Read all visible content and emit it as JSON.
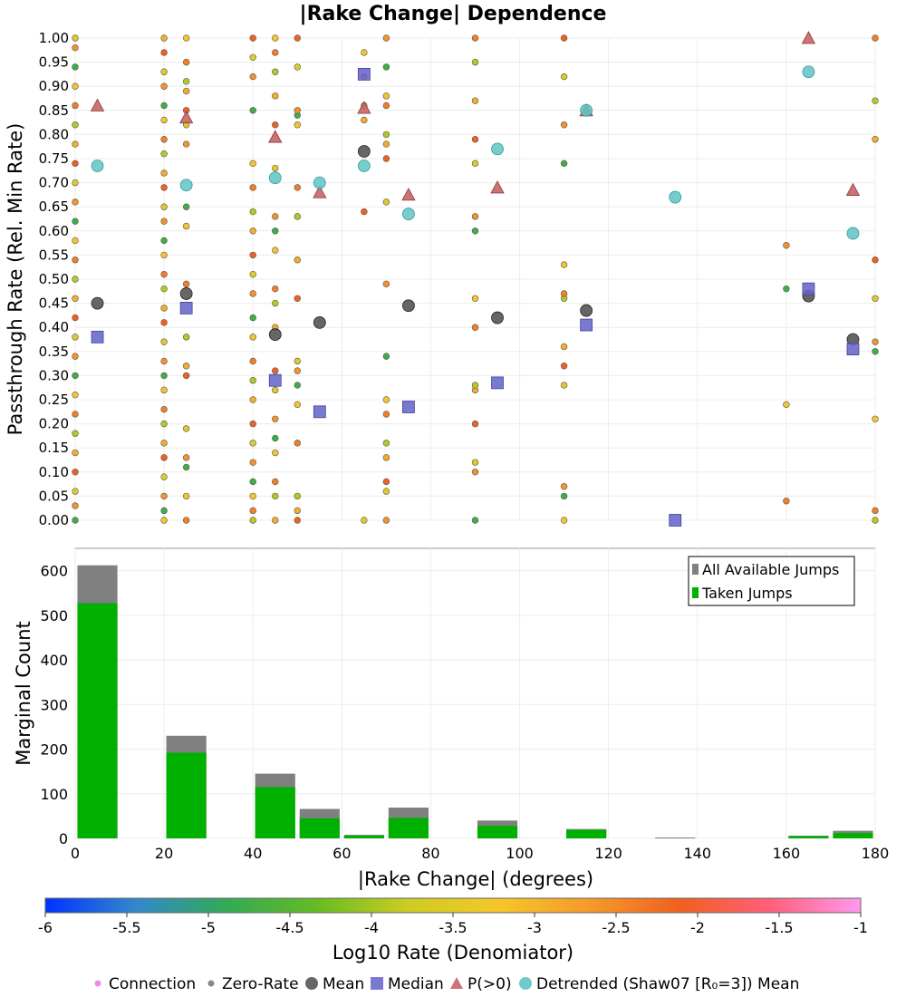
{
  "title": "|Rake Change| Dependence",
  "chart_data": [
    {
      "type": "scatter",
      "title": "|Rake Change| Dependence",
      "xlabel": "",
      "ylabel": "Passthrough Rate (Rel. Min Rate)",
      "xlim": [
        0,
        180
      ],
      "ylim": [
        0,
        1
      ],
      "xticks_shown": false,
      "yticks": [
        "0.00",
        "0.05",
        "0.10",
        "0.15",
        "0.20",
        "0.25",
        "0.30",
        "0.35",
        "0.40",
        "0.45",
        "0.50",
        "0.55",
        "0.60",
        "0.65",
        "0.70",
        "0.75",
        "0.80",
        "0.85",
        "0.90",
        "0.95",
        "1.00"
      ],
      "grid": true,
      "series": [
        {
          "name": "Mean",
          "marker": "circle",
          "color": "#555555",
          "points": [
            [
              5,
              0.45
            ],
            [
              25,
              0.47
            ],
            [
              45,
              0.385
            ],
            [
              55,
              0.41
            ],
            [
              65,
              0.765
            ],
            [
              75,
              0.445
            ],
            [
              95,
              0.42
            ],
            [
              115,
              0.435
            ],
            [
              165,
              0.465
            ],
            [
              175,
              0.375
            ]
          ]
        },
        {
          "name": "Median",
          "marker": "square",
          "color": "#6666cc",
          "points": [
            [
              5,
              0.38
            ],
            [
              25,
              0.44
            ],
            [
              45,
              0.29
            ],
            [
              55,
              0.225
            ],
            [
              65,
              0.925
            ],
            [
              75,
              0.235
            ],
            [
              95,
              0.285
            ],
            [
              115,
              0.405
            ],
            [
              135,
              0.0
            ],
            [
              165,
              0.48
            ],
            [
              175,
              0.355
            ]
          ]
        },
        {
          "name": "P(>0)",
          "marker": "triangle",
          "color": "#c86464",
          "points": [
            [
              5,
              0.86
            ],
            [
              25,
              0.835
            ],
            [
              45,
              0.795
            ],
            [
              55,
              0.68
            ],
            [
              65,
              0.855
            ],
            [
              75,
              0.675
            ],
            [
              95,
              0.69
            ],
            [
              115,
              0.85
            ],
            [
              165,
              1.0
            ],
            [
              175,
              0.685
            ]
          ]
        },
        {
          "name": "Detrended (Shaw07 [R₀=3]) Mean",
          "marker": "circle",
          "color": "#5fc4c4",
          "points": [
            [
              5,
              0.735
            ],
            [
              25,
              0.695
            ],
            [
              45,
              0.71
            ],
            [
              55,
              0.7
            ],
            [
              65,
              0.735
            ],
            [
              75,
              0.635
            ],
            [
              95,
              0.77
            ],
            [
              115,
              0.85
            ],
            [
              135,
              0.67
            ],
            [
              165,
              0.93
            ],
            [
              175,
              0.595
            ]
          ]
        }
      ],
      "rupture_points": {
        "note_colormap": "Log10 Rate (Denomiator)",
        "columns": [
          {
            "x": 0,
            "ys": [
              0.0,
              0.03,
              0.06,
              0.1,
              0.14,
              0.18,
              0.22,
              0.26,
              0.3,
              0.34,
              0.38,
              0.42,
              0.46,
              0.5,
              0.54,
              0.58,
              0.62,
              0.66,
              0.7,
              0.74,
              0.78,
              0.82,
              0.86,
              0.9,
              0.94,
              0.98,
              1.0
            ]
          },
          {
            "x": 20,
            "ys": [
              0.0,
              0.02,
              0.05,
              0.09,
              0.13,
              0.16,
              0.2,
              0.23,
              0.27,
              0.3,
              0.33,
              0.37,
              0.41,
              0.44,
              0.48,
              0.51,
              0.55,
              0.58,
              0.62,
              0.65,
              0.69,
              0.72,
              0.76,
              0.79,
              0.83,
              0.86,
              0.9,
              0.93,
              0.97,
              1.0
            ]
          },
          {
            "x": 25,
            "ys": [
              0.0,
              0.05,
              0.11,
              0.13,
              0.19,
              0.3,
              0.32,
              0.38,
              0.49,
              0.61,
              0.65,
              0.78,
              0.82,
              0.85,
              0.89,
              0.91,
              0.95,
              1.0
            ]
          },
          {
            "x": 40,
            "ys": [
              0.0,
              0.02,
              0.05,
              0.08,
              0.12,
              0.16,
              0.2,
              0.25,
              0.29,
              0.33,
              0.38,
              0.42,
              0.47,
              0.51,
              0.55,
              0.6,
              0.64,
              0.69,
              0.74,
              0.85,
              0.92,
              0.96,
              1.0
            ]
          },
          {
            "x": 45,
            "ys": [
              0.0,
              0.05,
              0.08,
              0.14,
              0.17,
              0.21,
              0.27,
              0.31,
              0.4,
              0.45,
              0.48,
              0.56,
              0.6,
              0.63,
              0.73,
              0.82,
              0.88,
              0.93,
              0.97,
              1.0
            ]
          },
          {
            "x": 50,
            "ys": [
              0.0,
              0.02,
              0.05,
              0.16,
              0.24,
              0.28,
              0.31,
              0.33,
              0.46,
              0.54,
              0.63,
              0.69,
              0.82,
              0.84,
              0.85,
              0.94,
              1.0
            ]
          },
          {
            "x": 65,
            "ys": [
              0.0,
              0.64,
              0.83,
              0.86,
              0.92,
              0.97
            ]
          },
          {
            "x": 70,
            "ys": [
              0.0,
              0.06,
              0.08,
              0.13,
              0.16,
              0.22,
              0.25,
              0.34,
              0.49,
              0.66,
              0.75,
              0.78,
              0.8,
              0.86,
              0.88,
              0.94,
              1.0
            ]
          },
          {
            "x": 90,
            "ys": [
              0.0,
              0.1,
              0.12,
              0.2,
              0.27,
              0.28,
              0.4,
              0.46,
              0.6,
              0.63,
              0.74,
              0.79,
              0.87,
              0.95,
              1.0
            ]
          },
          {
            "x": 110,
            "ys": [
              0.0,
              0.05,
              0.07,
              0.28,
              0.32,
              0.36,
              0.46,
              0.47,
              0.53,
              0.74,
              0.82,
              0.92,
              1.0
            ]
          },
          {
            "x": 160,
            "ys": [
              0.04,
              0.24,
              0.48,
              0.57
            ]
          },
          {
            "x": 180,
            "ys": [
              0.0,
              0.02,
              0.21,
              0.35,
              0.37,
              0.46,
              0.54,
              0.79,
              0.87,
              1.0
            ]
          }
        ]
      }
    },
    {
      "type": "bar",
      "title": "",
      "xlabel": "|Rake Change| (degrees)",
      "ylabel": "Marginal Count",
      "xlim": [
        0,
        180
      ],
      "ylim": [
        0,
        650
      ],
      "xticks": [
        "0",
        "20",
        "40",
        "60",
        "80",
        "100",
        "120",
        "140",
        "160",
        "180"
      ],
      "yticks": [
        "0",
        "100",
        "200",
        "300",
        "400",
        "500",
        "600"
      ],
      "grid": true,
      "legend_position": "top-right",
      "bin_centers": [
        5,
        25,
        45,
        55,
        65,
        75,
        95,
        115,
        135,
        165,
        175
      ],
      "series": [
        {
          "name": "All Available Jumps",
          "color": "#808080",
          "values": [
            612,
            230,
            145,
            66,
            8,
            69,
            40,
            21,
            2,
            6,
            17
          ]
        },
        {
          "name": "Taken Jumps",
          "color": "#00b000",
          "values": [
            527,
            192,
            115,
            45,
            6,
            46,
            28,
            19,
            0,
            5,
            12
          ]
        }
      ]
    }
  ],
  "colorbar": {
    "label": "Log10 Rate (Denomiator)",
    "ticks": [
      "-6",
      "-5.5",
      "-5",
      "-4.5",
      "-4",
      "-3.5",
      "-3",
      "-2.5",
      "-2",
      "-1.5",
      "-1"
    ],
    "range": [
      -6,
      -1
    ],
    "stops": [
      "#0033ff",
      "#3388cc",
      "#33aa55",
      "#66bb22",
      "#cccc22",
      "#f5c62a",
      "#f59a2a",
      "#f06020",
      "#ff5f7a",
      "#ff99ee"
    ]
  },
  "legend": [
    {
      "label": "Connection",
      "marker": "dot",
      "color": "#ee88ee"
    },
    {
      "label": "Zero-Rate",
      "marker": "dot",
      "color": "#888888"
    },
    {
      "label": "Mean",
      "marker": "circle",
      "color": "#555555"
    },
    {
      "label": "Median",
      "marker": "square",
      "color": "#6666cc"
    },
    {
      "label": "P(>0)",
      "marker": "triangle",
      "color": "#c86464"
    },
    {
      "label": "Detrended (Shaw07 [R₀=3]) Mean",
      "marker": "circle",
      "color": "#5fc4c4"
    }
  ]
}
